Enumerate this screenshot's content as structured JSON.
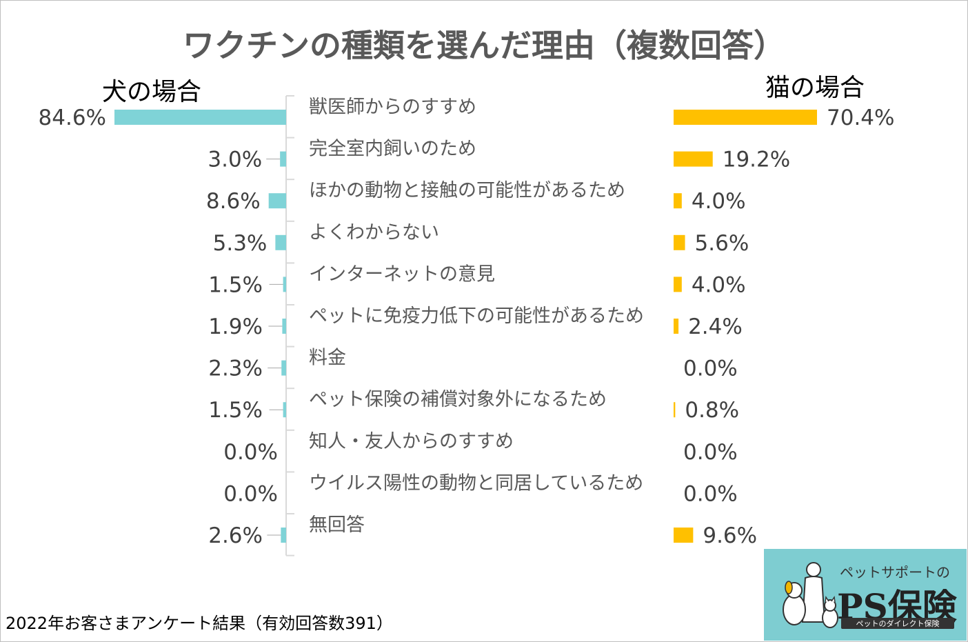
{
  "title": "ワクチンの種類を選んだ理由（複数回答）",
  "footer": "2022年お客さまアンケート結果（有効回答数391）",
  "logo": {
    "tagline": "ペットサポートの",
    "name": "PS保険",
    "small": "ペットのダイレクト保険",
    "icon": "pet-owner-with-dog-and-cat-icon"
  },
  "colors": {
    "dog": "#7fd3d7",
    "cat": "#ffc000",
    "axis": "#d9d9d9",
    "title": "#595959"
  },
  "chart_data": {
    "type": "bar",
    "title": "ワクチンの種類を選んだ理由（複数回答）",
    "categories": [
      "獣医師からのすすめ",
      "完全室内飼いのため",
      "ほかの動物と接触の可能性があるため",
      "よくわからない",
      "インターネットの意見",
      "ペットに免疫力低下の可能性があるため",
      "料金",
      "ペット保険の補償対象外になるため",
      "知人・友人からのすすめ",
      "ウイルス陽性の動物と同居しているため",
      "無回答"
    ],
    "unit": "%",
    "series": [
      {
        "name": "犬の場合",
        "values": [
          84.6,
          3.0,
          8.6,
          5.3,
          1.5,
          1.9,
          2.3,
          1.5,
          0.0,
          0.0,
          2.6
        ]
      },
      {
        "name": "猫の場合",
        "values": [
          70.4,
          19.2,
          4.0,
          5.6,
          4.0,
          2.4,
          0.0,
          0.8,
          0.0,
          0.0,
          9.6
        ]
      }
    ],
    "value_labels": {
      "dog": [
        "84.6%",
        "3.0%",
        "8.6%",
        "5.3%",
        "1.5%",
        "1.9%",
        "2.3%",
        "1.5%",
        "0.0%",
        "0.0%",
        "2.6%"
      ],
      "cat": [
        "70.4%",
        "19.2%",
        "4.0%",
        "5.6%",
        "4.0%",
        "2.4%",
        "0.0%",
        "0.8%",
        "0.0%",
        "0.0%",
        "9.6%"
      ]
    },
    "legend": "none",
    "grid": false
  }
}
